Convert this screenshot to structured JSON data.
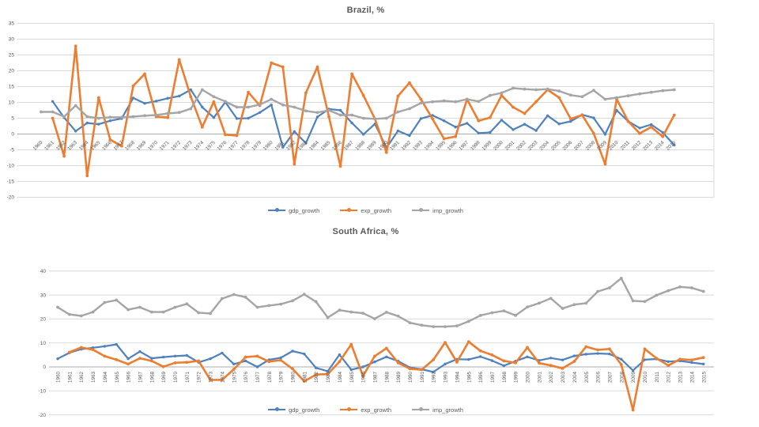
{
  "page": {
    "background": "#FFFFFF"
  },
  "colors": {
    "accent_blue": "#4E81BD",
    "accent_orange": "#ED7D31",
    "accent_gray": "#A5A5A5",
    "grid": "#D9D9D9",
    "zero_axis": "#ABABAB",
    "label_text": "#595959"
  },
  "chart_data": [
    {
      "type": "line",
      "title": "Brazil, %",
      "ylabel": "",
      "xlabel": "",
      "ylim": [
        -20,
        35
      ],
      "ytick_step": 5,
      "yticks": [
        35,
        30,
        25,
        20,
        15,
        10,
        5,
        0,
        -5,
        -10,
        -15,
        -20
      ],
      "grid": true,
      "legend_position": "bottom",
      "x_label_rotation": -45,
      "years": [
        1960,
        1961,
        1962,
        1963,
        1964,
        1965,
        1966,
        1967,
        1968,
        1969,
        1970,
        1971,
        1972,
        1973,
        1974,
        1975,
        1976,
        1977,
        1978,
        1979,
        1980,
        1981,
        1982,
        1983,
        1984,
        1985,
        1986,
        1987,
        1988,
        1989,
        1990,
        1991,
        1992,
        1993,
        1994,
        1995,
        1996,
        1997,
        1998,
        1999,
        2000,
        2001,
        2002,
        2003,
        2004,
        2005,
        2006,
        2007,
        2008,
        2009,
        2010,
        2011,
        2012,
        2013,
        2014,
        2015
      ],
      "series": [
        {
          "name": "gdp_growth",
          "color": "#4E81BD",
          "values": [
            null,
            10.3,
            5.2,
            0.9,
            3.5,
            3.1,
            4.2,
            4.9,
            11.4,
            9.7,
            10.4,
            11.3,
            12.0,
            14.0,
            8.5,
            5.2,
            10.1,
            4.9,
            5.0,
            6.8,
            9.2,
            -4.2,
            0.8,
            -2.9,
            5.4,
            7.9,
            7.5,
            3.5,
            -0.1,
            3.2,
            -4.3,
            1.0,
            -0.5,
            4.9,
            5.9,
            4.2,
            2.2,
            3.4,
            0.3,
            0.5,
            4.4,
            1.4,
            3.1,
            1.1,
            5.8,
            3.2,
            4.0,
            6.1,
            5.1,
            -0.1,
            7.5,
            4.0,
            1.9,
            3.0,
            0.5,
            -3.5
          ]
        },
        {
          "name": "exp_growth",
          "color": "#ED7D31",
          "values": [
            null,
            5.0,
            -7.0,
            27.8,
            -13.2,
            11.5,
            -1.8,
            -3.8,
            15.2,
            19.0,
            5.5,
            5.2,
            23.5,
            11.8,
            2.2,
            10.2,
            -0.2,
            -0.5,
            13.2,
            9.0,
            22.5,
            21.2,
            -9.5,
            13.0,
            21.2,
            5.5,
            -10.2,
            19.0,
            12.2,
            4.8,
            -5.8,
            12.0,
            16.2,
            11.0,
            4.8,
            -1.5,
            -0.8,
            11.0,
            4.2,
            5.2,
            12.2,
            8.5,
            6.5,
            10.2,
            14.0,
            11.5,
            4.8,
            6.0,
            0.2,
            -9.5,
            11.0,
            4.0,
            0.2,
            2.2,
            -0.8,
            6.0
          ]
        },
        {
          "name": "imp_growth",
          "color": "#A5A5A5",
          "values": [
            7.0,
            7.0,
            5.5,
            9.0,
            5.5,
            5.0,
            5.3,
            5.3,
            5.5,
            5.8,
            6.0,
            6.5,
            6.8,
            8.0,
            14.0,
            11.8,
            10.3,
            8.5,
            8.5,
            9.3,
            11.0,
            9.2,
            8.5,
            7.3,
            6.8,
            7.5,
            6.0,
            6.0,
            5.0,
            4.8,
            5.0,
            7.0,
            8.0,
            9.8,
            10.2,
            10.5,
            10.2,
            11.0,
            10.3,
            12.2,
            13.0,
            14.5,
            14.2,
            14.0,
            14.2,
            13.6,
            12.3,
            11.8,
            13.8,
            11.0,
            11.5,
            12.1,
            12.7,
            13.2,
            13.7,
            14.0
          ]
        }
      ]
    },
    {
      "type": "line",
      "title": "South Africa, %",
      "ylabel": "",
      "xlabel": "",
      "ylim": [
        -20,
        40
      ],
      "ytick_step": 10,
      "yticks": [
        40,
        30,
        20,
        10,
        0,
        -10,
        -20
      ],
      "grid": true,
      "legend_position": "bottom",
      "x_label_rotation": -90,
      "years": [
        1960,
        1961,
        1962,
        1963,
        1964,
        1965,
        1966,
        1967,
        1968,
        1969,
        1970,
        1971,
        1972,
        1973,
        1974,
        1975,
        1976,
        1977,
        1978,
        1979,
        1980,
        1981,
        1982,
        1983,
        1984,
        1985,
        1986,
        1987,
        1988,
        1989,
        1990,
        1991,
        1992,
        1993,
        1994,
        1995,
        1996,
        1997,
        1998,
        1999,
        2000,
        2001,
        2002,
        2003,
        2004,
        2005,
        2006,
        2007,
        2008,
        2009,
        2010,
        2011,
        2012,
        2013,
        2014,
        2015
      ],
      "series": [
        {
          "name": "gdp_growth",
          "color": "#4E81BD",
          "values": [
            3.4,
            5.9,
            7.4,
            8.0,
            8.6,
            9.4,
            3.4,
            6.4,
            3.6,
            4.1,
            4.5,
            4.8,
            1.9,
            3.4,
            5.8,
            1.2,
            2.5,
            0.0,
            3.0,
            3.8,
            6.6,
            5.4,
            -0.4,
            -1.8,
            5.1,
            -1.2,
            0.0,
            2.1,
            4.2,
            2.4,
            -0.3,
            -1.0,
            -2.1,
            1.2,
            3.2,
            3.1,
            4.3,
            2.6,
            0.5,
            2.4,
            4.2,
            2.7,
            3.7,
            2.9,
            4.6,
            5.3,
            5.6,
            5.4,
            3.2,
            -1.5,
            3.0,
            3.3,
            2.2,
            2.5,
            1.8,
            1.2
          ]
        },
        {
          "name": "exp_growth",
          "color": "#ED7D31",
          "values": [
            null,
            6.1,
            8.1,
            7.2,
            4.5,
            3.0,
            1.2,
            3.6,
            2.5,
            0.1,
            1.7,
            1.9,
            2.5,
            -5.4,
            -5.4,
            -1.0,
            4.1,
            4.5,
            2.2,
            2.8,
            -0.8,
            -6.0,
            -3.2,
            -3.0,
            2.2,
            9.4,
            -3.8,
            4.5,
            7.8,
            1.7,
            -0.8,
            -1.2,
            3.0,
            10.2,
            2.0,
            10.5,
            6.7,
            5.0,
            2.5,
            1.7,
            8.1,
            1.6,
            0.6,
            -0.6,
            2.3,
            8.4,
            7.1,
            7.5,
            1.0,
            -18.0,
            7.5,
            3.6,
            0.6,
            3.2,
            2.9,
            3.9
          ]
        },
        {
          "name": "imp_growth",
          "color": "#A5A5A5",
          "values": [
            24.9,
            21.9,
            21.3,
            22.9,
            26.9,
            27.9,
            23.9,
            24.9,
            22.9,
            22.9,
            24.9,
            26.3,
            22.6,
            22.3,
            28.5,
            30.2,
            29.1,
            24.9,
            25.6,
            26.2,
            27.6,
            30.3,
            27.2,
            20.6,
            23.7,
            22.9,
            22.4,
            20.1,
            22.8,
            21.2,
            18.4,
            17.4,
            16.8,
            16.8,
            17.1,
            19.0,
            21.5,
            22.6,
            23.4,
            21.5,
            25.0,
            26.6,
            28.6,
            24.4,
            26.0,
            26.6,
            31.5,
            33.0,
            37.0,
            27.6,
            27.3,
            29.9,
            31.8,
            33.4,
            33.0,
            31.5
          ]
        }
      ]
    }
  ]
}
